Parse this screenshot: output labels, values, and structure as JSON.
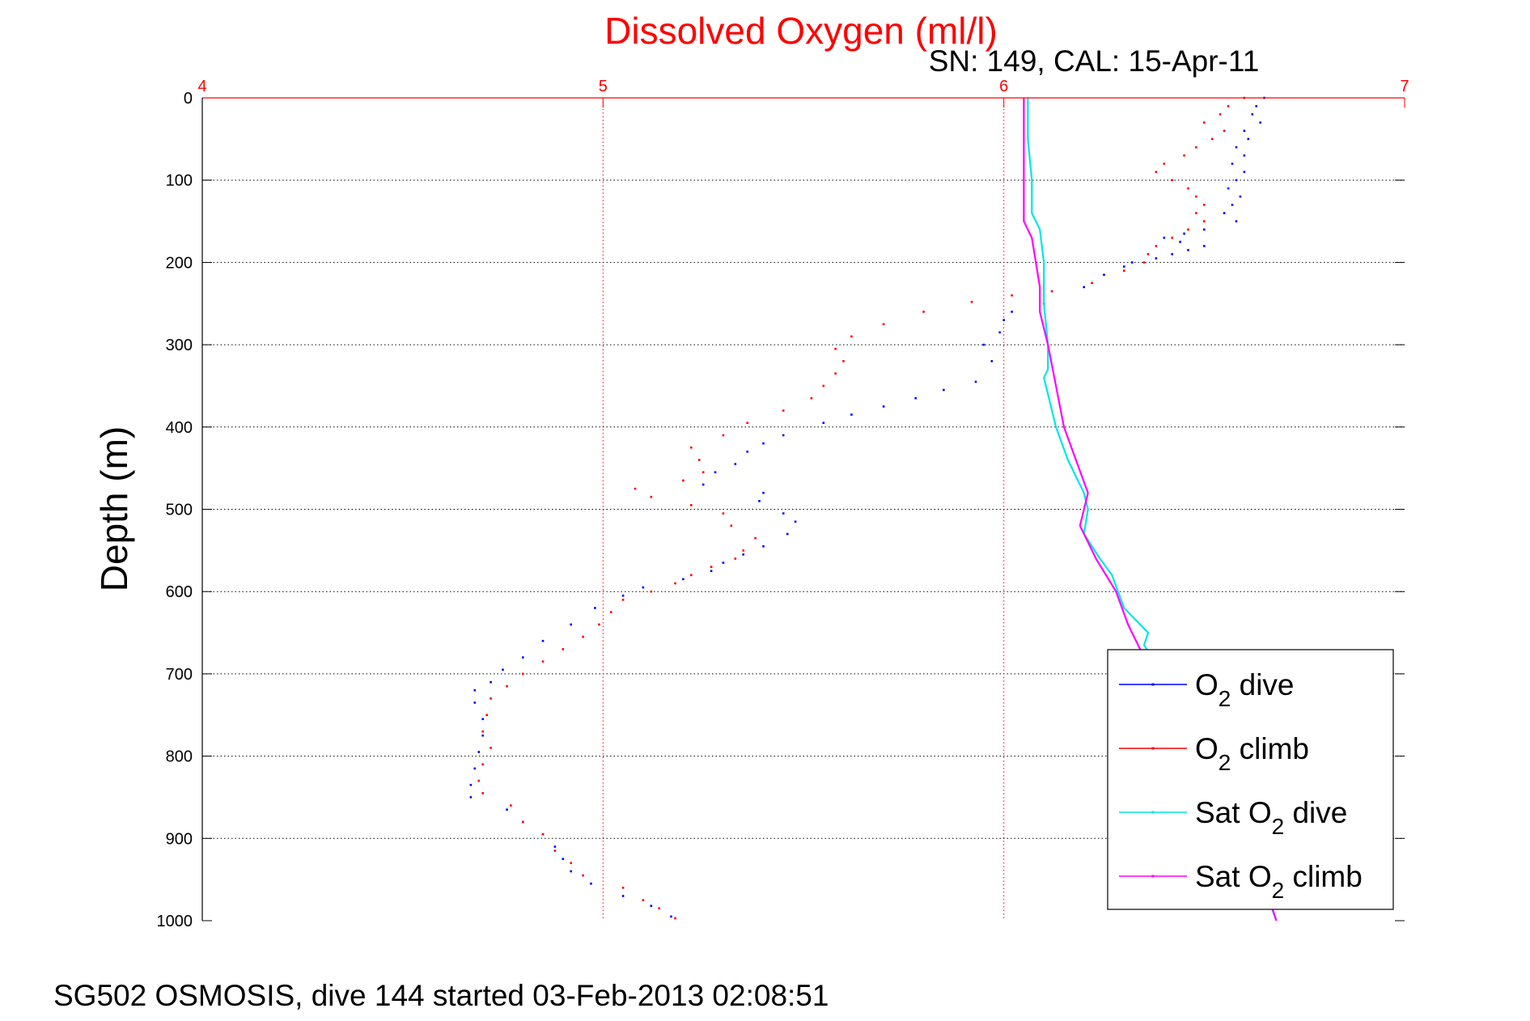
{
  "footer": "SG502 OSMOSIS, dive 144 started 03-Feb-2013 02:08:51",
  "chart_data": {
    "type": "scatter",
    "title": "Dissolved Oxygen (ml/l)",
    "subtitle": "SN: 149, CAL: 15-Apr-11",
    "ylabel": "Depth (m)",
    "xlabel": "",
    "xlim": [
      4,
      7
    ],
    "ylim": [
      0,
      1000
    ],
    "y_reversed": true,
    "x_axis_position": "top",
    "xticks": [
      "4",
      "5",
      "6",
      "7"
    ],
    "yticks": [
      "0",
      "100",
      "200",
      "300",
      "400",
      "500",
      "600",
      "700",
      "800",
      "900",
      "1000"
    ],
    "grid": true,
    "legend_position": "bottom-right",
    "colors": {
      "title": "#ff0000",
      "x_axis": "#ff0000",
      "x_grid": "#ff0000",
      "y_grid": "#000000"
    },
    "series": [
      {
        "name": "O2 dive",
        "legend_label": {
          "main": "O",
          "sub": "2",
          "rest": " dive"
        },
        "color": "#0000ff",
        "style": "dots",
        "points": [
          [
            6.65,
            0
          ],
          [
            6.63,
            10
          ],
          [
            6.62,
            20
          ],
          [
            6.64,
            30
          ],
          [
            6.6,
            40
          ],
          [
            6.61,
            50
          ],
          [
            6.58,
            60
          ],
          [
            6.6,
            70
          ],
          [
            6.57,
            80
          ],
          [
            6.6,
            90
          ],
          [
            6.58,
            100
          ],
          [
            6.56,
            110
          ],
          [
            6.59,
            120
          ],
          [
            6.57,
            130
          ],
          [
            6.55,
            140
          ],
          [
            6.58,
            150
          ],
          [
            6.5,
            160
          ],
          [
            6.45,
            165
          ],
          [
            6.4,
            170
          ],
          [
            6.44,
            175
          ],
          [
            6.5,
            180
          ],
          [
            6.46,
            185
          ],
          [
            6.42,
            190
          ],
          [
            6.38,
            195
          ],
          [
            6.32,
            200
          ],
          [
            6.3,
            205
          ],
          [
            6.25,
            215
          ],
          [
            6.2,
            230
          ],
          [
            6.1,
            250
          ],
          [
            6.02,
            260
          ],
          [
            6.0,
            270
          ],
          [
            5.99,
            285
          ],
          [
            5.95,
            300
          ],
          [
            5.97,
            320
          ],
          [
            5.93,
            345
          ],
          [
            5.85,
            355
          ],
          [
            5.78,
            365
          ],
          [
            5.7,
            375
          ],
          [
            5.62,
            385
          ],
          [
            5.55,
            395
          ],
          [
            5.45,
            410
          ],
          [
            5.4,
            420
          ],
          [
            5.36,
            430
          ],
          [
            5.33,
            445
          ],
          [
            5.28,
            455
          ],
          [
            5.25,
            470
          ],
          [
            5.4,
            480
          ],
          [
            5.39,
            490
          ],
          [
            5.45,
            505
          ],
          [
            5.48,
            515
          ],
          [
            5.46,
            530
          ],
          [
            5.4,
            545
          ],
          [
            5.35,
            555
          ],
          [
            5.3,
            565
          ],
          [
            5.27,
            575
          ],
          [
            5.2,
            585
          ],
          [
            5.1,
            595
          ],
          [
            5.05,
            605
          ],
          [
            4.98,
            620
          ],
          [
            4.92,
            640
          ],
          [
            4.85,
            660
          ],
          [
            4.8,
            680
          ],
          [
            4.75,
            695
          ],
          [
            4.72,
            710
          ],
          [
            4.68,
            720
          ],
          [
            4.68,
            735
          ],
          [
            4.7,
            755
          ],
          [
            4.7,
            775
          ],
          [
            4.69,
            795
          ],
          [
            4.68,
            815
          ],
          [
            4.67,
            835
          ],
          [
            4.67,
            850
          ],
          [
            4.76,
            865
          ],
          [
            4.8,
            880
          ],
          [
            4.85,
            895
          ],
          [
            4.88,
            910
          ],
          [
            4.9,
            925
          ],
          [
            4.92,
            940
          ],
          [
            4.97,
            955
          ],
          [
            5.05,
            970
          ],
          [
            5.12,
            982
          ],
          [
            5.17,
            995
          ]
        ]
      },
      {
        "name": "O2 climb",
        "legend_label": {
          "main": "O",
          "sub": "2",
          "rest": " climb"
        },
        "color": "#ff0000",
        "style": "dots",
        "points": [
          [
            5.18,
            997
          ],
          [
            5.14,
            985
          ],
          [
            5.1,
            975
          ],
          [
            5.05,
            960
          ],
          [
            4.95,
            945
          ],
          [
            4.92,
            930
          ],
          [
            4.88,
            915
          ],
          [
            4.85,
            895
          ],
          [
            4.8,
            880
          ],
          [
            4.77,
            860
          ],
          [
            4.7,
            845
          ],
          [
            4.69,
            830
          ],
          [
            4.7,
            810
          ],
          [
            4.72,
            790
          ],
          [
            4.7,
            770
          ],
          [
            4.71,
            750
          ],
          [
            4.72,
            730
          ],
          [
            4.76,
            715
          ],
          [
            4.8,
            700
          ],
          [
            4.85,
            685
          ],
          [
            4.9,
            670
          ],
          [
            4.95,
            655
          ],
          [
            4.99,
            640
          ],
          [
            5.02,
            625
          ],
          [
            5.05,
            610
          ],
          [
            5.12,
            600
          ],
          [
            5.18,
            590
          ],
          [
            5.22,
            580
          ],
          [
            5.27,
            570
          ],
          [
            5.33,
            560
          ],
          [
            5.35,
            550
          ],
          [
            5.38,
            535
          ],
          [
            5.32,
            520
          ],
          [
            5.3,
            505
          ],
          [
            5.22,
            495
          ],
          [
            5.12,
            485
          ],
          [
            5.08,
            475
          ],
          [
            5.2,
            465
          ],
          [
            5.25,
            455
          ],
          [
            5.24,
            440
          ],
          [
            5.22,
            425
          ],
          [
            5.3,
            410
          ],
          [
            5.36,
            395
          ],
          [
            5.45,
            380
          ],
          [
            5.52,
            365
          ],
          [
            5.55,
            350
          ],
          [
            5.58,
            335
          ],
          [
            5.6,
            320
          ],
          [
            5.58,
            305
          ],
          [
            5.62,
            290
          ],
          [
            5.7,
            275
          ],
          [
            5.8,
            260
          ],
          [
            5.92,
            248
          ],
          [
            6.02,
            240
          ],
          [
            6.12,
            235
          ],
          [
            6.22,
            225
          ],
          [
            6.3,
            210
          ],
          [
            6.35,
            200
          ],
          [
            6.36,
            190
          ],
          [
            6.38,
            180
          ],
          [
            6.42,
            170
          ],
          [
            6.46,
            160
          ],
          [
            6.5,
            150
          ],
          [
            6.48,
            140
          ],
          [
            6.5,
            130
          ],
          [
            6.48,
            120
          ],
          [
            6.46,
            110
          ],
          [
            6.42,
            100
          ],
          [
            6.38,
            90
          ],
          [
            6.4,
            80
          ],
          [
            6.45,
            70
          ],
          [
            6.48,
            60
          ],
          [
            6.52,
            50
          ],
          [
            6.55,
            40
          ],
          [
            6.5,
            30
          ],
          [
            6.54,
            20
          ],
          [
            6.56,
            10
          ],
          [
            6.6,
            0
          ]
        ]
      },
      {
        "name": "Sat O2 dive",
        "legend_label": {
          "main": "Sat O",
          "sub": "2",
          "rest": " dive"
        },
        "color": "#00e5e5",
        "style": "line",
        "points": [
          [
            6.06,
            0
          ],
          [
            6.06,
            50
          ],
          [
            6.07,
            100
          ],
          [
            6.07,
            140
          ],
          [
            6.09,
            160
          ],
          [
            6.1,
            200
          ],
          [
            6.1,
            250
          ],
          [
            6.11,
            300
          ],
          [
            6.11,
            330
          ],
          [
            6.1,
            340
          ],
          [
            6.11,
            360
          ],
          [
            6.13,
            400
          ],
          [
            6.16,
            440
          ],
          [
            6.2,
            480
          ],
          [
            6.21,
            500
          ],
          [
            6.2,
            530
          ],
          [
            6.24,
            560
          ],
          [
            6.27,
            580
          ],
          [
            6.3,
            620
          ],
          [
            6.36,
            650
          ],
          [
            6.35,
            665
          ],
          [
            6.37,
            680
          ],
          [
            6.43,
            720
          ],
          [
            6.5,
            780
          ],
          [
            6.55,
            840
          ],
          [
            6.6,
            900
          ],
          [
            6.65,
            960
          ],
          [
            6.68,
            1000
          ]
        ]
      },
      {
        "name": "Sat O2 climb",
        "legend_label": {
          "main": "Sat O",
          "sub": "2",
          "rest": " climb"
        },
        "color": "#ff00ff",
        "style": "line",
        "points": [
          [
            6.05,
            0
          ],
          [
            6.05,
            100
          ],
          [
            6.05,
            150
          ],
          [
            6.07,
            170
          ],
          [
            6.08,
            200
          ],
          [
            6.09,
            230
          ],
          [
            6.09,
            260
          ],
          [
            6.11,
            300
          ],
          [
            6.13,
            350
          ],
          [
            6.15,
            400
          ],
          [
            6.18,
            440
          ],
          [
            6.21,
            480
          ],
          [
            6.19,
            520
          ],
          [
            6.23,
            560
          ],
          [
            6.28,
            600
          ],
          [
            6.31,
            640
          ],
          [
            6.34,
            670
          ],
          [
            6.4,
            700
          ],
          [
            6.47,
            760
          ],
          [
            6.53,
            820
          ],
          [
            6.59,
            880
          ],
          [
            6.64,
            940
          ],
          [
            6.68,
            1000
          ]
        ]
      }
    ]
  }
}
